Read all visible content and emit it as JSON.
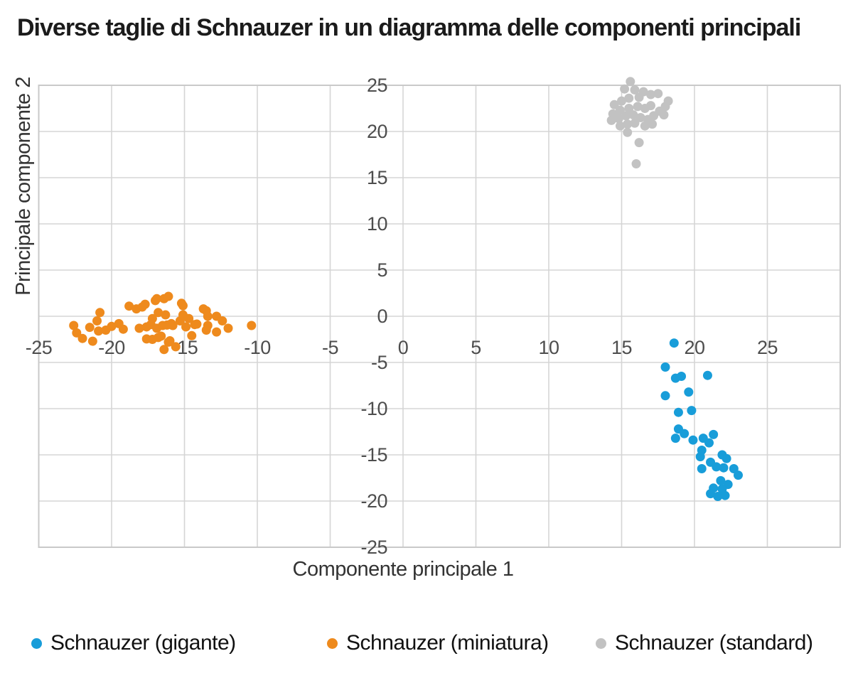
{
  "header": {
    "title": "Diverse taglie di Schnauzer in un diagramma delle componenti principali"
  },
  "chart_data": {
    "type": "scatter",
    "title": "Diverse taglie di Schnauzer in un diagramma delle componenti principali",
    "xlabel": "Componente principale 1",
    "ylabel": "Principale componente 2",
    "xlim": [
      -25,
      30
    ],
    "ylim": [
      -25,
      25
    ],
    "grid": true,
    "grid_step": 5,
    "x_ticks_labeled": [
      -25,
      -20,
      -15,
      -10,
      -5,
      0,
      5,
      10,
      15,
      20,
      25
    ],
    "y_ticks_labeled": [
      25,
      20,
      15,
      10,
      5,
      0,
      -5,
      -10,
      -15,
      -20,
      -25
    ],
    "legend_position": "bottom",
    "colors": {
      "grid": "#d5d5d5",
      "border": "#c9c9c9",
      "tick_text": "#4d4d4d",
      "axis_title_text": "#333333"
    },
    "series": [
      {
        "name": "Schnauzer (gigante)",
        "color": "#189dd9",
        "points": [
          [
            18.6,
            -2.9
          ],
          [
            18.0,
            -5.5
          ],
          [
            18.7,
            -6.7
          ],
          [
            19.1,
            -6.5
          ],
          [
            20.9,
            -6.4
          ],
          [
            19.6,
            -8.2
          ],
          [
            18.0,
            -8.6
          ],
          [
            18.9,
            -10.4
          ],
          [
            19.8,
            -10.2
          ],
          [
            18.9,
            -12.2
          ],
          [
            19.3,
            -12.7
          ],
          [
            18.7,
            -13.2
          ],
          [
            19.9,
            -13.4
          ],
          [
            20.6,
            -13.2
          ],
          [
            21.3,
            -12.8
          ],
          [
            21.0,
            -13.7
          ],
          [
            20.5,
            -14.5
          ],
          [
            20.4,
            -15.2
          ],
          [
            21.9,
            -15.0
          ],
          [
            22.2,
            -15.4
          ],
          [
            21.1,
            -15.8
          ],
          [
            20.5,
            -16.5
          ],
          [
            21.5,
            -16.3
          ],
          [
            22.0,
            -16.4
          ],
          [
            22.7,
            -16.5
          ],
          [
            23.0,
            -17.2
          ],
          [
            21.8,
            -17.8
          ],
          [
            22.3,
            -18.2
          ],
          [
            21.3,
            -18.6
          ],
          [
            21.9,
            -18.7
          ],
          [
            21.1,
            -19.2
          ],
          [
            21.6,
            -19.5
          ],
          [
            22.1,
            -19.4
          ]
        ]
      },
      {
        "name": "Schnauzer (miniatura)",
        "color": "#ee8a1d",
        "points": [
          [
            -22.6,
            -1.0
          ],
          [
            -22.4,
            -1.8
          ],
          [
            -22.0,
            -2.4
          ],
          [
            -21.5,
            -1.2
          ],
          [
            -21.3,
            -2.7
          ],
          [
            -21.0,
            -0.5
          ],
          [
            -20.8,
            0.4
          ],
          [
            -20.9,
            -1.6
          ],
          [
            -20.4,
            -1.5
          ],
          [
            -20.0,
            -1.1
          ],
          [
            -19.5,
            -0.8
          ],
          [
            -19.2,
            -1.4
          ],
          [
            -18.8,
            1.1
          ],
          [
            -18.3,
            0.8
          ],
          [
            -18.1,
            -1.3
          ],
          [
            -17.9,
            1.0
          ],
          [
            -17.7,
            1.3
          ],
          [
            -17.6,
            -1.15
          ],
          [
            -17.6,
            -2.45
          ],
          [
            -17.3,
            -0.9
          ],
          [
            -17.2,
            -0.25
          ],
          [
            -17.2,
            -2.5
          ],
          [
            -17.0,
            1.7
          ],
          [
            -16.9,
            1.9
          ],
          [
            -16.9,
            -1.3
          ],
          [
            -16.8,
            0.4
          ],
          [
            -16.8,
            -2.3
          ],
          [
            -16.6,
            -2.15
          ],
          [
            -16.5,
            -1.0
          ],
          [
            -16.4,
            1.9
          ],
          [
            -16.4,
            -3.6
          ],
          [
            -16.3,
            0.15
          ],
          [
            -16.2,
            -0.95
          ],
          [
            -16.1,
            2.15
          ],
          [
            -16.1,
            -2.8
          ],
          [
            -16.0,
            -2.65
          ],
          [
            -15.9,
            -0.8
          ],
          [
            -15.8,
            -1.0
          ],
          [
            -15.6,
            -3.3
          ],
          [
            -15.3,
            -0.5
          ],
          [
            -15.2,
            1.4
          ],
          [
            -15.1,
            1.15
          ],
          [
            -15.1,
            0.15
          ],
          [
            -14.9,
            -1.15
          ],
          [
            -14.7,
            -0.25
          ],
          [
            -14.5,
            -2.1
          ],
          [
            -14.3,
            -0.9
          ],
          [
            -14.15,
            -0.85
          ],
          [
            -13.7,
            0.8
          ],
          [
            -13.5,
            0.6
          ],
          [
            -13.5,
            -1.5
          ],
          [
            -13.4,
            0.0
          ],
          [
            -13.4,
            -1.0
          ],
          [
            -12.8,
            0.0
          ],
          [
            -12.8,
            -1.7
          ],
          [
            -12.4,
            -0.5
          ],
          [
            -12.0,
            -1.3
          ],
          [
            -10.4,
            -1.0
          ]
        ]
      },
      {
        "name": "Schnauzer (standard)",
        "color": "#c2c2c2",
        "points": [
          [
            15.6,
            25.4
          ],
          [
            15.2,
            24.6
          ],
          [
            15.9,
            24.5
          ],
          [
            16.5,
            24.3
          ],
          [
            17.0,
            24.0
          ],
          [
            17.5,
            24.1
          ],
          [
            16.2,
            23.7
          ],
          [
            15.5,
            23.6
          ],
          [
            15.0,
            23.3
          ],
          [
            14.5,
            22.9
          ],
          [
            18.2,
            23.3
          ],
          [
            18.0,
            22.7
          ],
          [
            17.6,
            22.2
          ],
          [
            17.0,
            22.8
          ],
          [
            16.6,
            22.5
          ],
          [
            16.1,
            22.7
          ],
          [
            15.5,
            22.5
          ],
          [
            14.9,
            22.3
          ],
          [
            14.4,
            21.9
          ],
          [
            14.3,
            21.2
          ],
          [
            14.8,
            21.4
          ],
          [
            15.3,
            21.7
          ],
          [
            15.8,
            21.8
          ],
          [
            16.3,
            21.5
          ],
          [
            16.8,
            21.3
          ],
          [
            17.2,
            21.7
          ],
          [
            17.9,
            21.8
          ],
          [
            15.4,
            20.8
          ],
          [
            14.9,
            20.6
          ],
          [
            15.9,
            20.9
          ],
          [
            16.6,
            20.6
          ],
          [
            17.1,
            20.8
          ],
          [
            15.4,
            19.9
          ],
          [
            16.2,
            18.8
          ],
          [
            16.0,
            16.5
          ]
        ]
      }
    ]
  }
}
